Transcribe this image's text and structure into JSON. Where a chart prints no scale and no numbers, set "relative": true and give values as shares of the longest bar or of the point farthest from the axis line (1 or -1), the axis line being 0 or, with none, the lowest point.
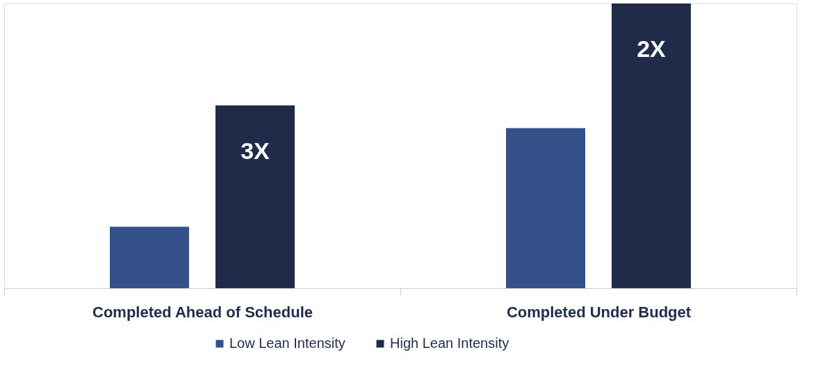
{
  "chart_data": {
    "type": "bar",
    "relative": true,
    "categories": [
      "Completed Ahead of Schedule",
      "Completed Under Budget"
    ],
    "series": [
      {
        "name": "Low Lean Intensity",
        "color": "#34518a",
        "values": [
          0.216,
          0.562
        ]
      },
      {
        "name": "High Lean Intensity",
        "color": "#1f2b48",
        "values": [
          0.642,
          1.0
        ]
      }
    ],
    "annotations": [
      "3X",
      "2X"
    ],
    "legend": "bottom",
    "grid": false
  }
}
